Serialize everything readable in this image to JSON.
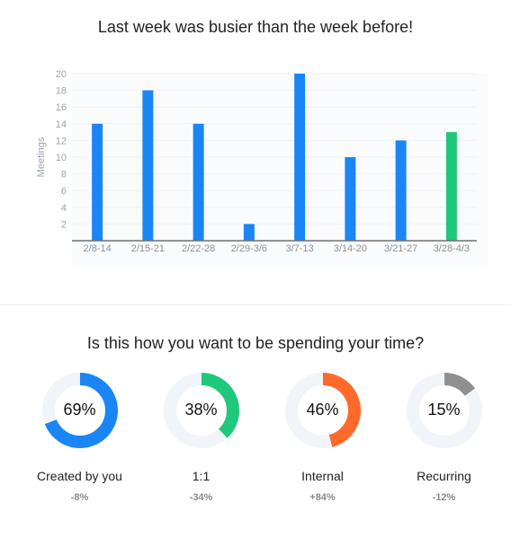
{
  "header": {
    "title": "Last week was busier than the week before!"
  },
  "chart_data": {
    "type": "bar",
    "ylabel": "Meetings",
    "xlabel": "",
    "ylim": [
      0,
      20
    ],
    "yticks": [
      "2",
      "4",
      "6",
      "8",
      "10",
      "12",
      "14",
      "16",
      "18",
      "20"
    ],
    "categories": [
      "2/8-14",
      "2/15-21",
      "2/22-28",
      "2/29-3/6",
      "3/7-13",
      "3/14-20",
      "3/21-27",
      "3/28-4/3"
    ],
    "values": [
      14,
      18,
      14,
      2,
      20,
      10,
      12,
      13
    ],
    "colors": [
      "#1a86f5",
      "#1a86f5",
      "#1a86f5",
      "#1a86f5",
      "#1a86f5",
      "#1a86f5",
      "#1a86f5",
      "#1fc87a"
    ],
    "grid": true
  },
  "time_section": {
    "title": "Is this how you want to be spending your time?",
    "donuts": [
      {
        "percent_label": "69%",
        "fraction": 0.69,
        "color": "#1a86f5",
        "label": "Created by you",
        "change": "-8%"
      },
      {
        "percent_label": "38%",
        "fraction": 0.38,
        "color": "#1fc87a",
        "label": "1:1",
        "change": "-34%"
      },
      {
        "percent_label": "46%",
        "fraction": 0.46,
        "color": "#ff6a2b",
        "label": "Internal",
        "change": "+84%"
      },
      {
        "percent_label": "15%",
        "fraction": 0.15,
        "color": "#8f8f8f",
        "label": "Recurring",
        "change": "-12%"
      }
    ],
    "track_color": "#f1f4f8"
  }
}
